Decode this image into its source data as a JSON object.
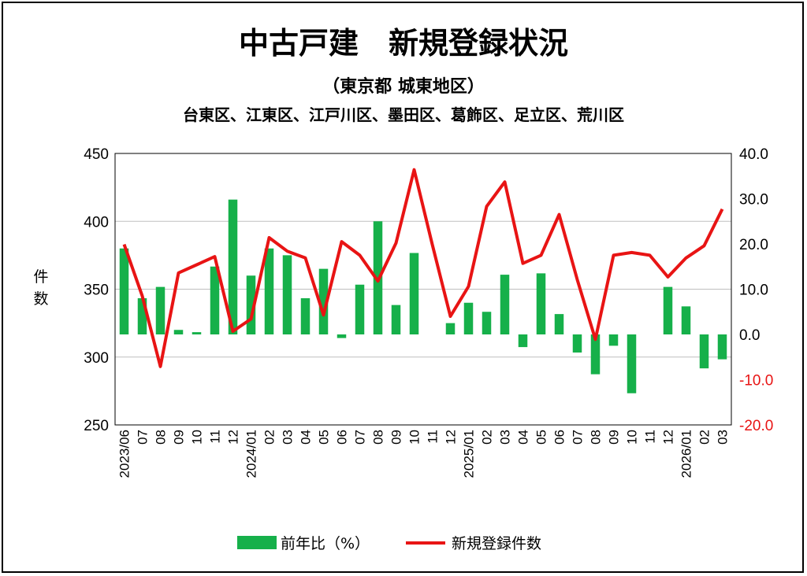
{
  "title": "中古戸建　新規登録状況",
  "subtitle": "（東京都 城東地区）",
  "subtitle2": "台東区、江東区、江戸川区、墨田区、葛飾区、足立区、荒川区",
  "colors": {
    "bar": "#16b04a",
    "line": "#e81414",
    "right_axis_text": "#e81414",
    "grid": "#bfbfbf"
  },
  "chart_data": {
    "type": "bar",
    "categories": [
      "2023/06",
      "07",
      "08",
      "09",
      "10",
      "11",
      "12",
      "2024/01",
      "02",
      "03",
      "04",
      "05",
      "06",
      "07",
      "08",
      "09",
      "10",
      "11",
      "12",
      "2025/01",
      "02",
      "03",
      "04",
      "05",
      "06",
      "07",
      "08",
      "09",
      "10",
      "11",
      "12",
      "2026/01",
      "02",
      "03"
    ],
    "ylabel": "件数",
    "ylim": [
      250,
      450
    ],
    "yticks": [
      "450",
      "400",
      "350",
      "300",
      "250"
    ],
    "y2lim": [
      -20,
      40
    ],
    "y2ticks": [
      "40.0",
      "30.0",
      "20.0",
      "10.0",
      "0.0",
      "-10.0",
      "-20.0"
    ],
    "grid": true,
    "legend_position": "bottom",
    "series": [
      {
        "name": "前年比（%）",
        "type": "bar",
        "axis": "right",
        "values": [
          19.0,
          8.0,
          10.5,
          1.0,
          0.5,
          15.0,
          29.8,
          13.0,
          19.0,
          17.5,
          8.0,
          14.5,
          -0.8,
          11.0,
          25.0,
          6.5,
          18.0,
          0.0,
          2.5,
          7.0,
          5.0,
          13.2,
          -2.8,
          13.5,
          4.5,
          -4.0,
          -8.8,
          -2.5,
          -13.0,
          0.0,
          10.5,
          6.2,
          -7.5,
          -5.5
        ]
      },
      {
        "name": "新規登録件数",
        "type": "line",
        "axis": "left",
        "values": [
          383,
          345,
          293,
          362,
          368,
          374,
          319,
          328,
          388,
          378,
          373,
          331,
          385,
          375,
          356,
          384,
          438,
          383,
          330,
          352,
          411,
          429,
          369,
          375,
          405,
          357,
          313,
          375,
          377,
          375,
          359,
          373,
          382,
          409
        ]
      }
    ]
  }
}
